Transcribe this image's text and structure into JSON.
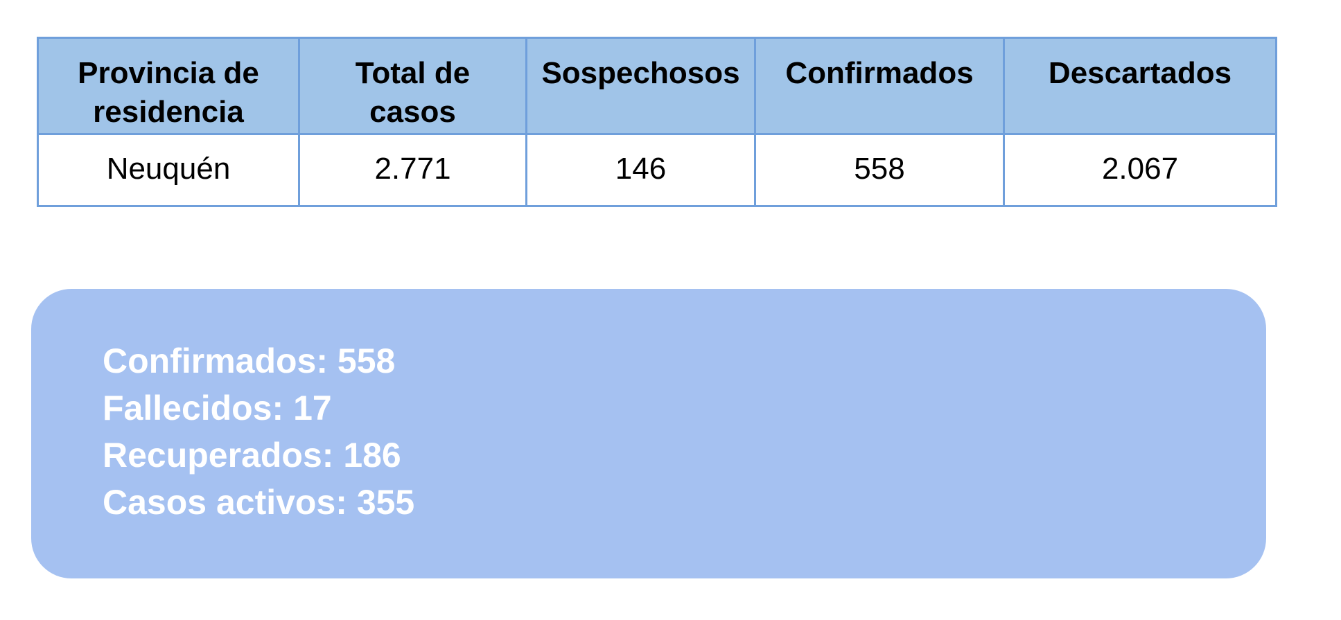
{
  "table": {
    "columns": [
      "Provincia de\nresidencia",
      "Total de\ncasos",
      "Sospechosos",
      "Confirmados",
      "Descartados"
    ],
    "rows": [
      {
        "cells": [
          "Neuquén",
          "2.771",
          "146",
          "558",
          "2.067"
        ]
      }
    ]
  },
  "summary_box": {
    "lines": [
      {
        "label": "Confirmados",
        "value": "558",
        "text": "Confirmados: 558"
      },
      {
        "label": "Fallecidos",
        "value": "17",
        "text": "Fallecidos: 17"
      },
      {
        "label": "Recuperados",
        "value": "186",
        "text": "Recuperados: 186"
      },
      {
        "label": "Casos activos",
        "value": "355",
        "text": "Casos activos: 355"
      }
    ]
  },
  "colors": {
    "page_background": "#ffffff",
    "table_border": "#6f9fdb",
    "table_header_fill": "#a0c4e8",
    "table_row_fill": "#ffffff",
    "table_text": "#000000",
    "summary_box_fill": "#a5c1f1",
    "summary_text": "#ffffff"
  }
}
